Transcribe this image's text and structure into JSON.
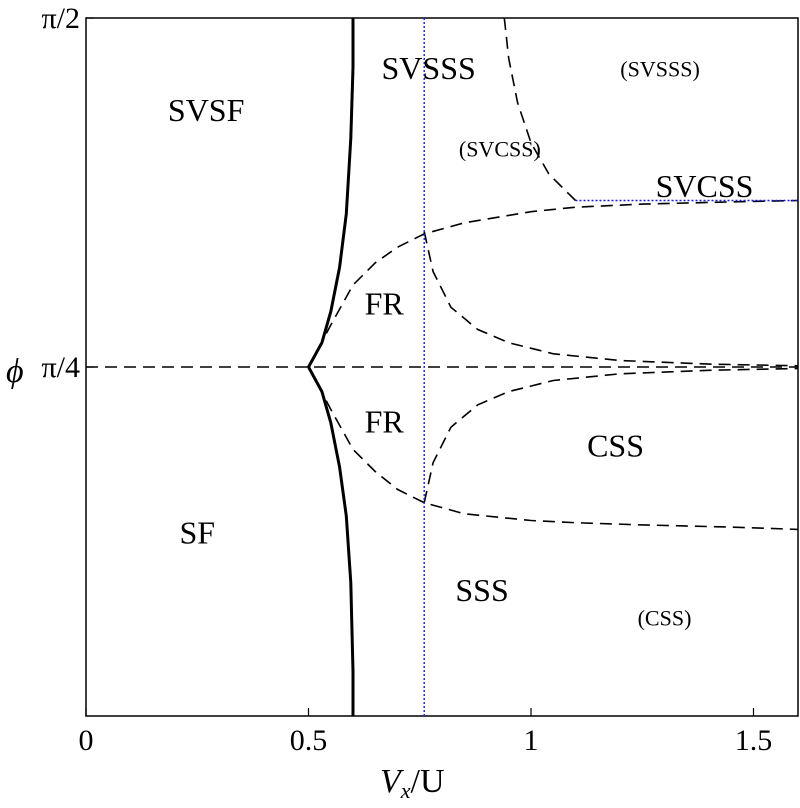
{
  "chart_data": {
    "type": "phase-diagram",
    "xlabel": {
      "main": "V",
      "sub": "x",
      "rest": "/U"
    },
    "ylabel": "ϕ",
    "xlim": [
      0,
      1.6
    ],
    "ylim": [
      0,
      1.5708
    ],
    "x_ticks": [
      {
        "value": 0,
        "label": "0"
      },
      {
        "value": 0.5,
        "label": "0.5"
      },
      {
        "value": 1,
        "label": "1"
      },
      {
        "value": 1.5,
        "label": "1.5"
      }
    ],
    "y_ticks": [
      {
        "value": 0.7854,
        "label": "π/4"
      },
      {
        "value": 1.5708,
        "label": "π/2"
      }
    ],
    "grid": false,
    "blue_color": "#1a1adb",
    "regions": [
      {
        "label": "SVSF",
        "x": 0.27,
        "y": 1.355,
        "color": "black"
      },
      {
        "label": "SVSSS",
        "x": 0.77,
        "y": 1.45,
        "color": "black"
      },
      {
        "label": "(SVSSS)",
        "x": 1.29,
        "y": 1.45,
        "color": "blue"
      },
      {
        "label": "(SVCSS)",
        "x": 0.93,
        "y": 1.27,
        "color": "blue"
      },
      {
        "label": "SVCSS",
        "x": 1.39,
        "y": 1.185,
        "color": "black"
      },
      {
        "label": "FR",
        "x": 0.67,
        "y": 0.92,
        "color": "black"
      },
      {
        "label": "FR",
        "x": 0.67,
        "y": 0.655,
        "color": "black"
      },
      {
        "label": "CSS",
        "x": 1.19,
        "y": 0.6,
        "color": "black"
      },
      {
        "label": "SF",
        "x": 0.25,
        "y": 0.405,
        "color": "black"
      },
      {
        "label": "SSS",
        "x": 0.89,
        "y": 0.275,
        "color": "black"
      },
      {
        "label": "(CSS)",
        "x": 1.3,
        "y": 0.215,
        "color": "blue"
      }
    ],
    "series": [
      {
        "style": "solid",
        "points": [
          [
            0.6,
            0
          ],
          [
            0.6,
            0.1
          ],
          [
            0.595,
            0.3
          ],
          [
            0.585,
            0.45
          ],
          [
            0.57,
            0.56
          ],
          [
            0.55,
            0.66
          ],
          [
            0.53,
            0.73
          ],
          [
            0.5,
            0.7854
          ],
          [
            0.53,
            0.84
          ],
          [
            0.55,
            0.91
          ],
          [
            0.57,
            1.01
          ],
          [
            0.585,
            1.13
          ],
          [
            0.595,
            1.3
          ],
          [
            0.6,
            1.46
          ],
          [
            0.6,
            1.5708
          ]
        ]
      },
      {
        "style": "dashed",
        "points": [
          [
            0,
            0.7854
          ],
          [
            1.6,
            0.7854
          ]
        ]
      },
      {
        "style": "dashed",
        "points": [
          [
            0.5,
            0.7854
          ],
          [
            0.55,
            0.88
          ],
          [
            0.6,
            0.97
          ],
          [
            0.65,
            1.02
          ],
          [
            0.7,
            1.055
          ],
          [
            0.76,
            1.085
          ],
          [
            0.85,
            1.11
          ],
          [
            1.0,
            1.135
          ],
          [
            1.1,
            1.145
          ],
          [
            1.25,
            1.152
          ],
          [
            1.45,
            1.157
          ],
          [
            1.6,
            1.16
          ]
        ]
      },
      {
        "style": "dashed",
        "points": [
          [
            0.5,
            0.7854
          ],
          [
            0.55,
            0.69
          ],
          [
            0.6,
            0.6
          ],
          [
            0.65,
            0.55
          ],
          [
            0.7,
            0.51
          ],
          [
            0.76,
            0.48
          ],
          [
            0.85,
            0.455
          ],
          [
            1.0,
            0.44
          ],
          [
            1.1,
            0.435
          ],
          [
            1.25,
            0.43
          ],
          [
            1.45,
            0.425
          ],
          [
            1.6,
            0.42
          ]
        ]
      },
      {
        "style": "dashed",
        "points": [
          [
            0.76,
            1.09
          ],
          [
            0.78,
            1.0
          ],
          [
            0.82,
            0.92
          ],
          [
            0.88,
            0.87
          ],
          [
            0.95,
            0.84
          ],
          [
            1.05,
            0.815
          ],
          [
            1.2,
            0.8
          ],
          [
            1.4,
            0.792
          ],
          [
            1.6,
            0.788
          ]
        ]
      },
      {
        "style": "dashed",
        "points": [
          [
            0.76,
            0.48
          ],
          [
            0.78,
            0.57
          ],
          [
            0.82,
            0.65
          ],
          [
            0.88,
            0.7
          ],
          [
            0.95,
            0.73
          ],
          [
            1.05,
            0.755
          ],
          [
            1.2,
            0.77
          ],
          [
            1.4,
            0.778
          ],
          [
            1.6,
            0.782
          ]
        ]
      },
      {
        "style": "dashed",
        "points": [
          [
            0.94,
            1.5708
          ],
          [
            0.95,
            1.48
          ],
          [
            0.97,
            1.38
          ],
          [
            1.0,
            1.29
          ],
          [
            1.04,
            1.22
          ],
          [
            1.08,
            1.18
          ],
          [
            1.1,
            1.16
          ]
        ]
      },
      {
        "style": "dotted-blue",
        "points": [
          [
            0.76,
            0
          ],
          [
            0.76,
            1.5708
          ]
        ]
      },
      {
        "style": "dotted-blue",
        "points": [
          [
            1.1,
            1.16
          ],
          [
            1.6,
            1.16
          ]
        ]
      }
    ]
  }
}
